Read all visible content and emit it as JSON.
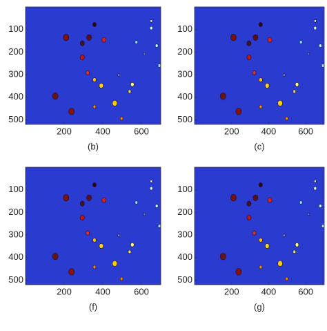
{
  "chart_data": [
    {
      "type": "image",
      "caption": "(b)",
      "xlim": [
        0,
        700
      ],
      "ylim": [
        0,
        520
      ],
      "xticks": [
        200,
        400,
        600
      ],
      "yticks": [
        100,
        200,
        300,
        400,
        500
      ],
      "color": "#2b3bd0"
    },
    {
      "type": "image",
      "caption": "(c)",
      "xlim": [
        0,
        700
      ],
      "ylim": [
        0,
        520
      ],
      "xticks": [
        200,
        400,
        600
      ],
      "yticks": [
        100,
        200,
        300,
        400,
        500
      ],
      "color": "#2b3bd0"
    },
    {
      "type": "image",
      "caption": "(f)",
      "xlim": [
        0,
        700
      ],
      "ylim": [
        0,
        520
      ],
      "xticks": [
        200,
        400,
        600
      ],
      "yticks": [
        100,
        200,
        300,
        400,
        500
      ],
      "color": "#2b3bd0"
    },
    {
      "type": "image",
      "caption": "(g)",
      "xlim": [
        0,
        700
      ],
      "ylim": [
        0,
        520
      ],
      "xticks": [
        200,
        400,
        600
      ],
      "yticks": [
        100,
        200,
        300,
        400,
        500
      ],
      "color": "#2b3bd0"
    }
  ]
}
